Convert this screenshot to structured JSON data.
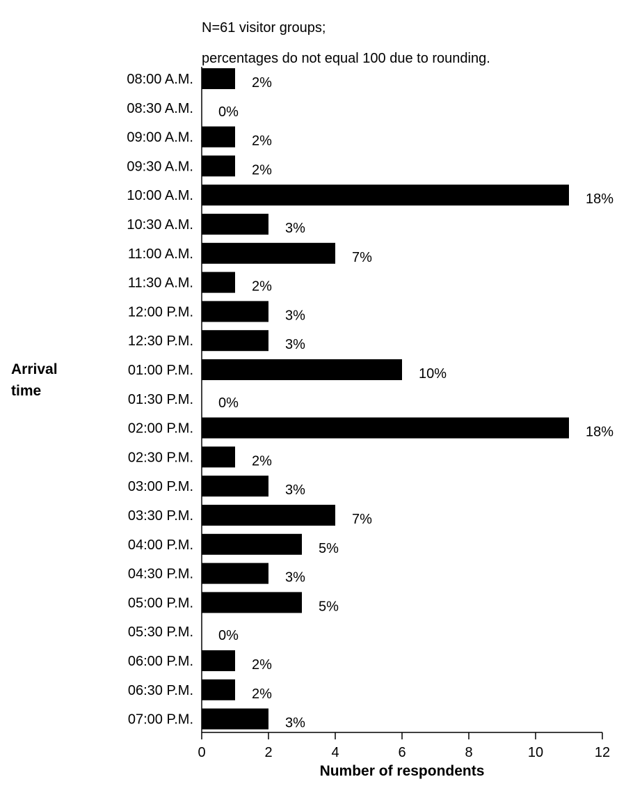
{
  "chart_data": {
    "type": "bar",
    "orientation": "horizontal",
    "notes": [
      "N=61 visitor groups;",
      "percentages do not equal 100 due to rounding."
    ],
    "ylabel": [
      "Arrival",
      "time"
    ],
    "xlabel": "Number of respondents",
    "categories": [
      "08:00 A.M.",
      "08:30 A.M.",
      "09:00 A.M.",
      "09:30 A.M.",
      "10:00 A.M.",
      "10:30 A.M.",
      "11:00 A.M.",
      "11:30 A.M.",
      "12:00 P.M.",
      "12:30 P.M.",
      "01:00 P.M.",
      "01:30 P.M.",
      "02:00 P.M.",
      "02:30 P.M.",
      "03:00 P.M.",
      "03:30 P.M.",
      "04:00 P.M.",
      "04:30 P.M.",
      "05:00 P.M.",
      "05:30 P.M.",
      "06:00 P.M.",
      "06:30 P.M.",
      "07:00 P.M."
    ],
    "values": [
      1,
      0,
      1,
      1,
      11,
      2,
      4,
      1,
      2,
      2,
      6,
      0,
      11,
      1,
      2,
      4,
      3,
      2,
      3,
      0,
      1,
      1,
      2
    ],
    "data_labels": [
      "2%",
      "0%",
      "2%",
      "2%",
      "18%",
      "3%",
      "7%",
      "2%",
      "3%",
      "3%",
      "10%",
      "0%",
      "18%",
      "2%",
      "3%",
      "7%",
      "5%",
      "3%",
      "5%",
      "0%",
      "2%",
      "2%",
      "3%"
    ],
    "xlim": [
      0,
      12
    ],
    "xticks": [
      0,
      2,
      4,
      6,
      8,
      10,
      12
    ],
    "bar_color": "#000000",
    "grid": false,
    "legend": "none"
  }
}
